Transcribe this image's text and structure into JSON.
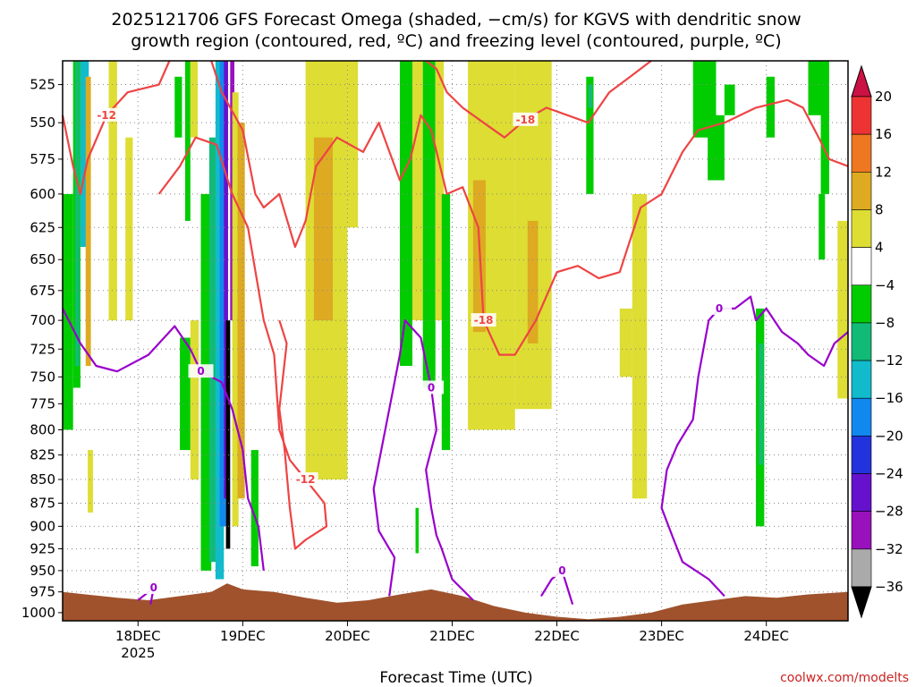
{
  "title_line1": "2025121706 GFS Forecast Omega (shaded, −cm/s) for KGVS with dendritic snow",
  "title_line2": "growth region (contoured, red, ºC) and freezing level (contoured, purple, ºC)",
  "credit": "coolwx.com/modelts",
  "colors": {
    "dgz_contour": "#ee4444",
    "freezing_contour": "#9900cc",
    "terrain": "#a0522d",
    "grid": "#888888"
  },
  "chart_data": {
    "type": "heatmap",
    "title": "2025121706 GFS Forecast Omega (shaded, −cm/s) for KGVS with dendritic snow growth region (contoured, red, ºC) and freezing level (contoured, purple, ºC)",
    "xlabel": "Forecast Time (UTC)",
    "ylabel": "",
    "x_ticks": [
      {
        "label": "18DEC",
        "sublabel": "2025",
        "t": 0
      },
      {
        "label": "19DEC",
        "sublabel": "",
        "t": 1
      },
      {
        "label": "20DEC",
        "sublabel": "",
        "t": 2
      },
      {
        "label": "21DEC",
        "sublabel": "",
        "t": 3
      },
      {
        "label": "22DEC",
        "sublabel": "",
        "t": 4
      },
      {
        "label": "23DEC",
        "sublabel": "",
        "t": 5
      },
      {
        "label": "24DEC",
        "sublabel": "",
        "t": 6
      }
    ],
    "xlim": [
      -0.72,
      6.78
    ],
    "y_ticks": [
      "525",
      "550",
      "575",
      "600",
      "625",
      "650",
      "675",
      "700",
      "725",
      "750",
      "775",
      "800",
      "825",
      "850",
      "875",
      "900",
      "925",
      "950",
      "975",
      "1000"
    ],
    "ylim": [
      1010,
      510
    ],
    "y_scale": "log-pressure",
    "grid": true,
    "colorbar": {
      "labels": [
        "20",
        "16",
        "12",
        "8",
        "4",
        "−4",
        "−8",
        "−12",
        "−16",
        "−20",
        "−24",
        "−28",
        "−32",
        "−36"
      ],
      "bins": [
        {
          "color": "#cc1144",
          "range": ">20"
        },
        {
          "color": "#ee3333",
          "range": "16 to 20"
        },
        {
          "color": "#ee7722",
          "range": "12 to 16"
        },
        {
          "color": "#ddaa22",
          "range": "8 to 12"
        },
        {
          "color": "#dddd33",
          "range": "4 to 8"
        },
        {
          "color": "#ffffff",
          "range": "-4 to 4"
        },
        {
          "color": "#00cc00",
          "range": "-8 to -4"
        },
        {
          "color": "#11bb77",
          "range": "-12 to -8"
        },
        {
          "color": "#11bbcc",
          "range": "-16 to -12"
        },
        {
          "color": "#1188ee",
          "range": "-20 to -16"
        },
        {
          "color": "#2233dd",
          "range": "-24 to -20"
        },
        {
          "color": "#6611cc",
          "range": "-28 to -24"
        },
        {
          "color": "#9911bb",
          "range": "-32 to -28"
        },
        {
          "color": "#aaaaaa",
          "range": "-36 to -32"
        },
        {
          "color": "#000000",
          "range": "<-36"
        }
      ]
    },
    "shaded_regions": [
      {
        "t0": -0.72,
        "t1": -0.62,
        "p_top": 600,
        "p_bot": 800,
        "color": "#00cc00"
      },
      {
        "t0": -0.62,
        "t1": -0.55,
        "p_top": 510,
        "p_bot": 760,
        "color": "#00cc00"
      },
      {
        "t0": -0.6,
        "t1": -0.56,
        "p_top": 510,
        "p_bot": 740,
        "color": "#11bb77"
      },
      {
        "t0": -0.55,
        "t1": -0.47,
        "p_top": 510,
        "p_bot": 640,
        "color": "#11bbcc"
      },
      {
        "t0": -0.5,
        "t1": -0.45,
        "p_top": 520,
        "p_bot": 740,
        "color": "#ddaa22"
      },
      {
        "t0": -0.48,
        "t1": -0.43,
        "p_top": 820,
        "p_bot": 885,
        "color": "#dddd33"
      },
      {
        "t0": -0.28,
        "t1": -0.2,
        "p_top": 510,
        "p_bot": 700,
        "color": "#dddd33"
      },
      {
        "t0": -0.12,
        "t1": -0.05,
        "p_top": 560,
        "p_bot": 700,
        "color": "#dddd33"
      },
      {
        "t0": 0.35,
        "t1": 0.42,
        "p_top": 520,
        "p_bot": 560,
        "color": "#00cc00"
      },
      {
        "t0": 0.45,
        "t1": 0.5,
        "p_top": 510,
        "p_bot": 620,
        "color": "#00cc00"
      },
      {
        "t0": 0.5,
        "t1": 0.57,
        "p_top": 510,
        "p_bot": 560,
        "color": "#dddd33"
      },
      {
        "t0": 0.4,
        "t1": 0.5,
        "p_top": 715,
        "p_bot": 820,
        "color": "#00cc00"
      },
      {
        "t0": 0.5,
        "t1": 0.58,
        "p_top": 700,
        "p_bot": 850,
        "color": "#dddd33"
      },
      {
        "t0": 0.6,
        "t1": 0.7,
        "p_top": 600,
        "p_bot": 950,
        "color": "#00cc00"
      },
      {
        "t0": 0.68,
        "t1": 0.75,
        "p_top": 560,
        "p_bot": 940,
        "color": "#11bb77"
      },
      {
        "t0": 0.74,
        "t1": 0.82,
        "p_top": 510,
        "p_bot": 960,
        "color": "#11bbcc"
      },
      {
        "t0": 0.78,
        "t1": 0.84,
        "p_top": 510,
        "p_bot": 900,
        "color": "#1188ee"
      },
      {
        "t0": 0.82,
        "t1": 0.86,
        "p_top": 510,
        "p_bot": 870,
        "color": "#6611cc"
      },
      {
        "t0": 0.84,
        "t1": 0.88,
        "p_top": 700,
        "p_bot": 925,
        "color": "#000000"
      },
      {
        "t0": 0.88,
        "t1": 0.92,
        "p_top": 510,
        "p_bot": 700,
        "color": "#9911bb"
      },
      {
        "t0": 0.9,
        "t1": 0.96,
        "p_top": 530,
        "p_bot": 900,
        "color": "#dddd33"
      },
      {
        "t0": 0.95,
        "t1": 1.02,
        "p_top": 550,
        "p_bot": 870,
        "color": "#ddaa22"
      },
      {
        "t0": 1.08,
        "t1": 1.15,
        "p_top": 820,
        "p_bot": 945,
        "color": "#00cc00"
      },
      {
        "t0": 1.6,
        "t1": 2.0,
        "p_top": 510,
        "p_bot": 850,
        "color": "#dddd33"
      },
      {
        "t0": 1.68,
        "t1": 1.86,
        "p_top": 560,
        "p_bot": 700,
        "color": "#ddaa22"
      },
      {
        "t0": 2.0,
        "t1": 2.1,
        "p_top": 510,
        "p_bot": 625,
        "color": "#dddd33"
      },
      {
        "t0": 2.5,
        "t1": 2.62,
        "p_top": 510,
        "p_bot": 740,
        "color": "#00cc00"
      },
      {
        "t0": 2.62,
        "t1": 2.72,
        "p_top": 510,
        "p_bot": 700,
        "color": "#dddd33"
      },
      {
        "t0": 2.72,
        "t1": 2.84,
        "p_top": 510,
        "p_bot": 760,
        "color": "#00cc00"
      },
      {
        "t0": 2.84,
        "t1": 2.92,
        "p_top": 510,
        "p_bot": 700,
        "color": "#dddd33"
      },
      {
        "t0": 2.9,
        "t1": 2.98,
        "p_top": 600,
        "p_bot": 820,
        "color": "#00cc00"
      },
      {
        "t0": 2.65,
        "t1": 2.68,
        "p_top": 880,
        "p_bot": 930,
        "color": "#00cc00"
      },
      {
        "t0": 3.15,
        "t1": 3.6,
        "p_top": 510,
        "p_bot": 800,
        "color": "#dddd33"
      },
      {
        "t0": 3.2,
        "t1": 3.32,
        "p_top": 590,
        "p_bot": 710,
        "color": "#ddaa22"
      },
      {
        "t0": 3.6,
        "t1": 3.95,
        "p_top": 510,
        "p_bot": 780,
        "color": "#dddd33"
      },
      {
        "t0": 3.72,
        "t1": 3.82,
        "p_top": 620,
        "p_bot": 720,
        "color": "#ddaa22"
      },
      {
        "t0": 4.28,
        "t1": 4.35,
        "p_top": 520,
        "p_bot": 600,
        "color": "#00cc00"
      },
      {
        "t0": 4.3,
        "t1": 4.34,
        "p_top": 525,
        "p_bot": 540,
        "color": "#11bb77"
      },
      {
        "t0": 4.6,
        "t1": 4.72,
        "p_top": 690,
        "p_bot": 750,
        "color": "#dddd33"
      },
      {
        "t0": 4.72,
        "t1": 4.86,
        "p_top": 600,
        "p_bot": 870,
        "color": "#dddd33"
      },
      {
        "t0": 5.3,
        "t1": 5.52,
        "p_top": 510,
        "p_bot": 560,
        "color": "#00cc00"
      },
      {
        "t0": 5.44,
        "t1": 5.6,
        "p_top": 545,
        "p_bot": 590,
        "color": "#00cc00"
      },
      {
        "t0": 5.6,
        "t1": 5.7,
        "p_top": 525,
        "p_bot": 545,
        "color": "#00cc00"
      },
      {
        "t0": 5.9,
        "t1": 5.98,
        "p_top": 690,
        "p_bot": 900,
        "color": "#00cc00"
      },
      {
        "t0": 5.93,
        "t1": 5.97,
        "p_top": 720,
        "p_bot": 835,
        "color": "#11bb77"
      },
      {
        "t0": 6.0,
        "t1": 6.08,
        "p_top": 520,
        "p_bot": 560,
        "color": "#00cc00"
      },
      {
        "t0": 6.4,
        "t1": 6.56,
        "p_top": 510,
        "p_bot": 545,
        "color": "#00cc00"
      },
      {
        "t0": 6.52,
        "t1": 6.6,
        "p_top": 510,
        "p_bot": 600,
        "color": "#00cc00"
      },
      {
        "t0": 6.5,
        "t1": 6.56,
        "p_top": 600,
        "p_bot": 650,
        "color": "#00cc00"
      },
      {
        "t0": 6.68,
        "t1": 6.78,
        "p_top": 620,
        "p_bot": 770,
        "color": "#dddd33"
      }
    ],
    "dgz_contours": [
      {
        "label": "-12",
        "points": [
          [
            -0.72,
            545
          ],
          [
            -0.62,
            580
          ],
          [
            -0.55,
            600
          ],
          [
            -0.48,
            575
          ],
          [
            -0.3,
            545
          ],
          [
            -0.1,
            530
          ],
          [
            0.2,
            525
          ],
          [
            0.3,
            510
          ]
        ]
      },
      {
        "label": "-12",
        "points": [
          [
            0.2,
            600
          ],
          [
            0.4,
            580
          ],
          [
            0.55,
            560
          ],
          [
            0.75,
            565
          ],
          [
            0.9,
            600
          ],
          [
            1.05,
            625
          ],
          [
            1.2,
            700
          ],
          [
            1.3,
            730
          ],
          [
            1.35,
            800
          ],
          [
            1.45,
            830
          ],
          [
            1.6,
            850
          ],
          [
            1.78,
            875
          ],
          [
            1.8,
            900
          ],
          [
            1.6,
            915
          ],
          [
            1.5,
            925
          ],
          [
            1.45,
            880
          ],
          [
            1.4,
            820
          ],
          [
            1.35,
            780
          ],
          [
            1.42,
            720
          ],
          [
            1.35,
            700
          ]
        ]
      },
      {
        "label": "-18",
        "points": [
          [
            0.7,
            510
          ],
          [
            0.8,
            530
          ],
          [
            1.0,
            555
          ],
          [
            1.12,
            600
          ],
          [
            1.2,
            610
          ],
          [
            1.35,
            600
          ],
          [
            1.5,
            640
          ],
          [
            1.6,
            620
          ],
          [
            1.7,
            580
          ],
          [
            1.9,
            560
          ],
          [
            2.15,
            570
          ],
          [
            2.3,
            550
          ],
          [
            2.5,
            590
          ],
          [
            2.6,
            575
          ],
          [
            2.7,
            545
          ],
          [
            2.8,
            555
          ],
          [
            2.95,
            600
          ],
          [
            3.1,
            595
          ],
          [
            3.25,
            625
          ],
          [
            3.3,
            700
          ],
          [
            3.45,
            730
          ],
          [
            3.6,
            730
          ],
          [
            3.8,
            700
          ],
          [
            4.0,
            660
          ],
          [
            4.2,
            655
          ],
          [
            4.4,
            665
          ],
          [
            4.6,
            660
          ],
          [
            4.8,
            610
          ],
          [
            5.0,
            600
          ],
          [
            5.2,
            570
          ],
          [
            5.35,
            555
          ],
          [
            5.6,
            550
          ],
          [
            5.9,
            540
          ],
          [
            6.2,
            535
          ],
          [
            6.35,
            540
          ],
          [
            6.5,
            560
          ],
          [
            6.6,
            575
          ],
          [
            6.78,
            580
          ]
        ]
      },
      {
        "label": "-18",
        "points": [
          [
            2.75,
            510
          ],
          [
            2.85,
            515
          ],
          [
            2.95,
            530
          ],
          [
            3.1,
            540
          ],
          [
            3.3,
            550
          ],
          [
            3.5,
            560
          ],
          [
            3.7,
            548
          ],
          [
            3.9,
            540
          ],
          [
            4.1,
            545
          ],
          [
            4.3,
            550
          ],
          [
            4.5,
            530
          ],
          [
            4.7,
            520
          ],
          [
            4.9,
            510
          ]
        ]
      }
    ],
    "freezing_contours": [
      {
        "label": "0",
        "points": [
          [
            -0.72,
            690
          ],
          [
            -0.55,
            720
          ],
          [
            -0.4,
            740
          ],
          [
            -0.2,
            745
          ],
          [
            0.1,
            730
          ],
          [
            0.35,
            705
          ],
          [
            0.5,
            725
          ],
          [
            0.6,
            745
          ],
          [
            0.8,
            755
          ],
          [
            0.9,
            780
          ],
          [
            1.0,
            820
          ],
          [
            1.05,
            870
          ],
          [
            1.15,
            900
          ],
          [
            1.2,
            950
          ]
        ]
      },
      {
        "label": "0",
        "points": [
          [
            2.4,
            980
          ],
          [
            2.45,
            935
          ],
          [
            2.3,
            905
          ],
          [
            2.25,
            860
          ],
          [
            2.4,
            780
          ],
          [
            2.5,
            730
          ],
          [
            2.55,
            700
          ],
          [
            2.7,
            715
          ],
          [
            2.8,
            760
          ],
          [
            2.85,
            800
          ],
          [
            2.75,
            840
          ],
          [
            2.8,
            880
          ],
          [
            2.85,
            910
          ],
          [
            2.9,
            925
          ],
          [
            3.0,
            960
          ],
          [
            3.2,
            985
          ]
        ]
      },
      {
        "label": "0",
        "points": [
          [
            3.85,
            980
          ],
          [
            3.95,
            960
          ],
          [
            4.05,
            950
          ],
          [
            4.1,
            970
          ],
          [
            4.15,
            990
          ]
        ]
      },
      {
        "label": "0",
        "points": [
          [
            5.6,
            980
          ],
          [
            5.45,
            960
          ],
          [
            5.2,
            940
          ],
          [
            5.1,
            910
          ],
          [
            5.0,
            880
          ],
          [
            5.05,
            840
          ],
          [
            5.15,
            815
          ],
          [
            5.3,
            790
          ],
          [
            5.35,
            750
          ],
          [
            5.45,
            700
          ],
          [
            5.55,
            690
          ],
          [
            5.7,
            690
          ],
          [
            5.85,
            680
          ],
          [
            5.9,
            700
          ],
          [
            6.0,
            690
          ],
          [
            6.15,
            710
          ],
          [
            6.3,
            720
          ],
          [
            6.4,
            730
          ],
          [
            6.55,
            740
          ],
          [
            6.65,
            720
          ],
          [
            6.78,
            710
          ]
        ]
      },
      {
        "label": "0",
        "points": [
          [
            0.0,
            985
          ],
          [
            0.1,
            975
          ],
          [
            0.15,
            970
          ],
          [
            0.12,
            990
          ]
        ]
      }
    ],
    "terrain_profile": [
      [
        -0.72,
        975
      ],
      [
        -0.5,
        978
      ],
      [
        -0.2,
        982
      ],
      [
        0.1,
        985
      ],
      [
        0.4,
        980
      ],
      [
        0.7,
        975
      ],
      [
        0.85,
        965
      ],
      [
        1.0,
        972
      ],
      [
        1.3,
        975
      ],
      [
        1.6,
        982
      ],
      [
        1.9,
        988
      ],
      [
        2.2,
        985
      ],
      [
        2.5,
        978
      ],
      [
        2.8,
        972
      ],
      [
        3.1,
        980
      ],
      [
        3.4,
        992
      ],
      [
        3.7,
        1000
      ],
      [
        4.0,
        1005
      ],
      [
        4.3,
        1008
      ],
      [
        4.6,
        1005
      ],
      [
        4.9,
        1000
      ],
      [
        5.2,
        990
      ],
      [
        5.5,
        985
      ],
      [
        5.8,
        980
      ],
      [
        6.1,
        982
      ],
      [
        6.4,
        978
      ],
      [
        6.78,
        975
      ]
    ]
  }
}
